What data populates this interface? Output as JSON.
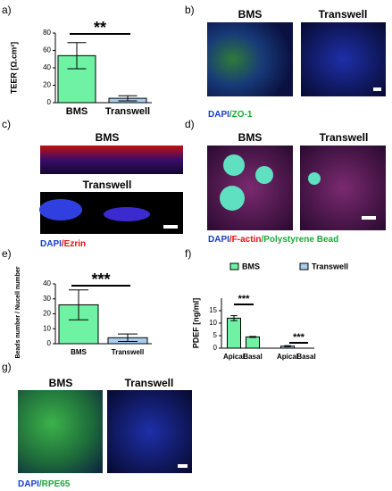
{
  "chart_data": [
    {
      "type": "bar",
      "ylabel": "TEER [Ω.cm²]",
      "categories": [
        "BMS",
        "Transwell"
      ],
      "values": [
        54,
        5
      ],
      "errors": [
        15,
        3
      ],
      "colors": [
        "#6ff2a4",
        "#a9cdee"
      ],
      "ylim": [
        0,
        80
      ],
      "yticks": [
        0,
        20,
        40,
        60,
        80
      ],
      "annotations": [
        "**"
      ]
    },
    {
      "type": "bar",
      "ylabel": "Beads number / Nucell number",
      "categories": [
        "BMS",
        "Transwell"
      ],
      "values": [
        26,
        4
      ],
      "errors": [
        10,
        2.5
      ],
      "colors": [
        "#6ff2a4",
        "#a9cdee"
      ],
      "ylim": [
        0,
        40
      ],
      "yticks": [
        0,
        10,
        20,
        30,
        40
      ],
      "annotations": [
        "***"
      ]
    },
    {
      "type": "grouped_bar",
      "ylabel": "PDEF [ng/ml]",
      "categories": [
        "Apical",
        "Basal",
        "Apical",
        "Basal"
      ],
      "series": [
        {
          "name": "BMS",
          "color": "#6ff2a4",
          "values": [
            12,
            4.5,
            null,
            null
          ],
          "errors": [
            1,
            0.2,
            null,
            null
          ]
        },
        {
          "name": "Transwell",
          "color": "#a9cdee",
          "values": [
            null,
            null,
            0.8,
            0
          ],
          "errors": [
            null,
            null,
            0.2,
            null
          ]
        }
      ],
      "ylim": [
        0,
        20
      ],
      "yticks": [
        0,
        5,
        10,
        15
      ],
      "legend": "top",
      "annotations": [
        "***",
        "***"
      ]
    }
  ],
  "panels": {
    "a": {
      "label": "a)"
    },
    "e": {
      "label": "e)"
    },
    "f": {
      "label": "f)"
    },
    "b": {
      "label": "b)",
      "left": "BMS",
      "right": "Transwell",
      "caption": [
        "DAPI",
        "/ZO-1"
      ]
    },
    "c": {
      "label": "c)",
      "top": "BMS",
      "bottom": "Transwell",
      "caption": [
        "DAPI",
        "/Ezrin"
      ]
    },
    "d": {
      "label": "d)",
      "left": "BMS",
      "right": "Transwell",
      "caption": [
        "DAPI",
        "/F-actin",
        "/Polystyrene Bead"
      ]
    },
    "g": {
      "label": "g)",
      "left": "BMS",
      "right": "Transwell",
      "caption": [
        "DAPI",
        "/RPE65"
      ]
    }
  }
}
